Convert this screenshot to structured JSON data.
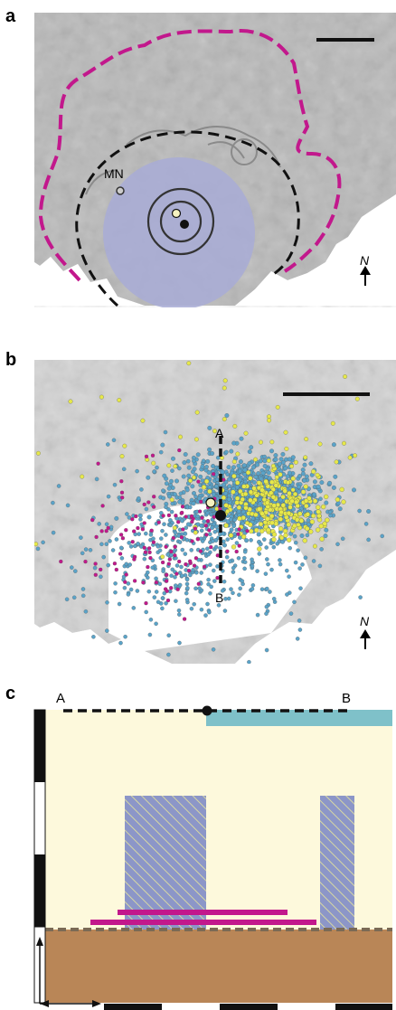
{
  "figure": {
    "panels": [
      {
        "id": "a",
        "label": "a"
      },
      {
        "id": "b",
        "label": "b"
      },
      {
        "id": "c",
        "label": "c"
      }
    ]
  },
  "panel_a": {
    "site_label": "MN",
    "north_label": "N",
    "colors": {
      "caldera_rim": "#c2188c",
      "inner_ring": "#111111",
      "disc": "#a8acd6",
      "terrain": "#b9b9b9",
      "sea": "#ffffff"
    }
  },
  "panel_b": {
    "profile_start": "A",
    "profile_end": "B",
    "north_label": "N",
    "colors": {
      "cluster_blue": "#5aa3c8",
      "cluster_yellow": "#e6e84a",
      "cluster_magenta": "#c2188c"
    }
  },
  "panel_c": {
    "profile_start": "A",
    "profile_end": "B",
    "colors": {
      "upper_layer": "#fdf9dc",
      "lower_layer": "#b98657",
      "top_band": "#7fc1c9",
      "hatch_fill": "#8c96c8",
      "hatch_lines": "#e8e79a",
      "bars": "#c2188c",
      "boundary": "#7a6a55"
    }
  }
}
